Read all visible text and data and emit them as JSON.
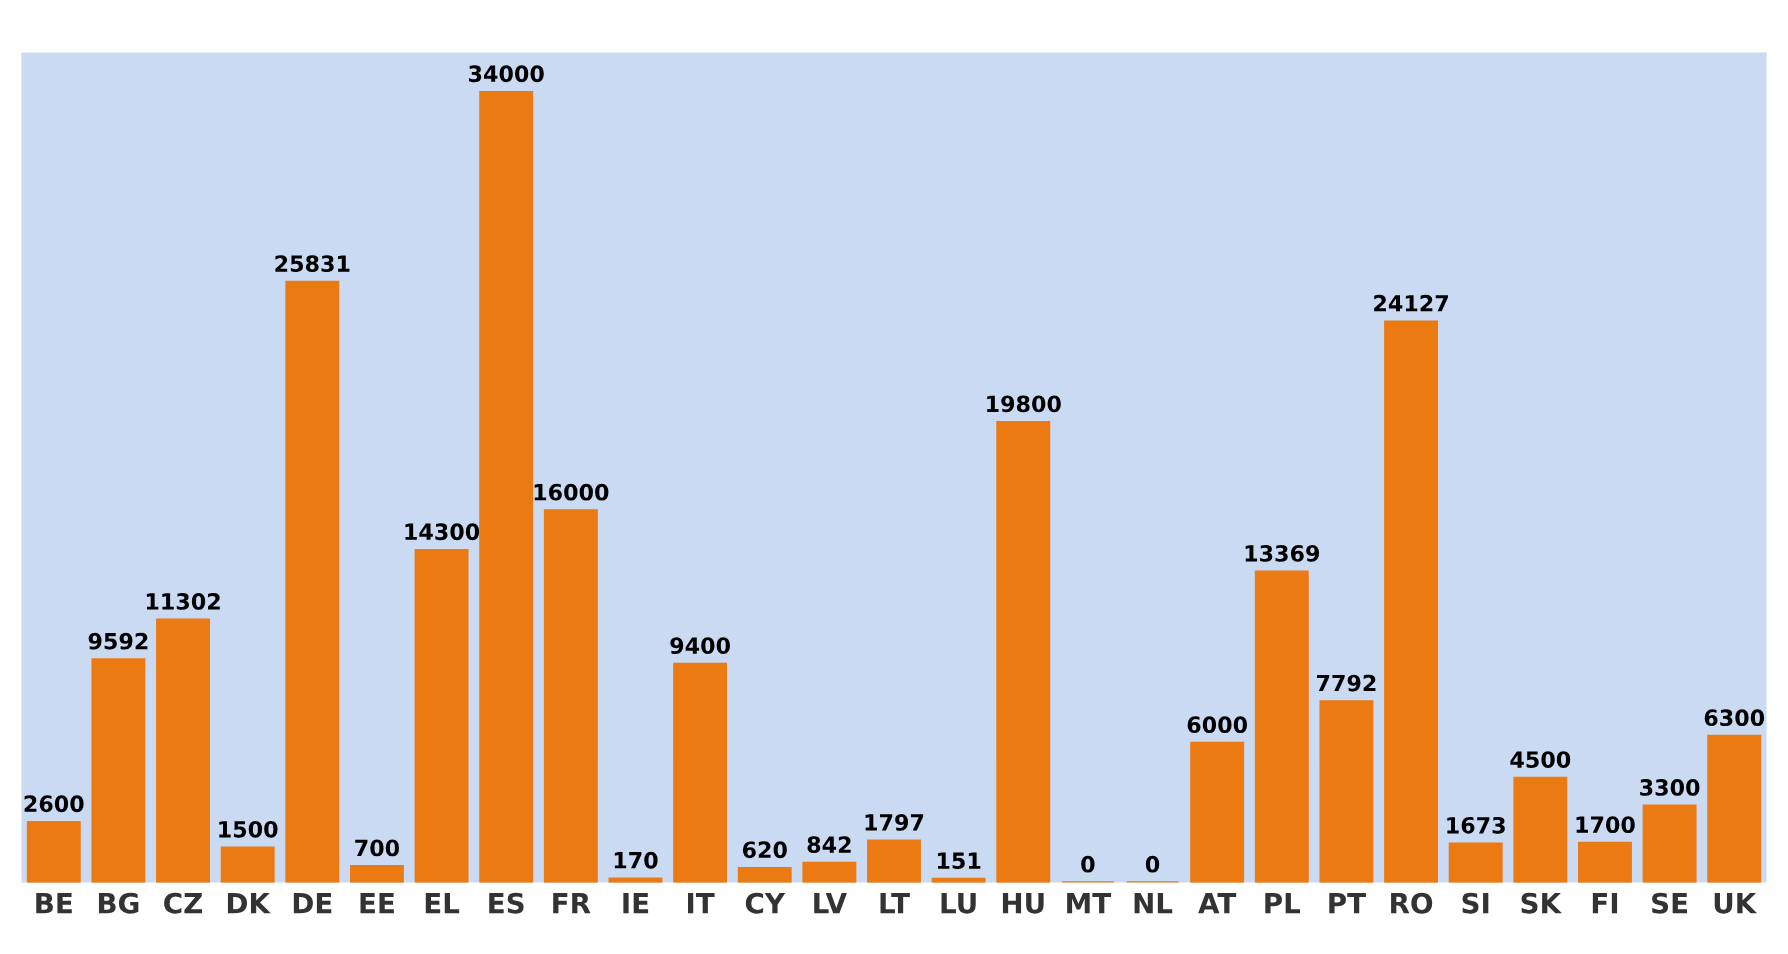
{
  "chart_data": {
    "type": "bar",
    "categories": [
      "BE",
      "BG",
      "CZ",
      "DK",
      "DE",
      "EE",
      "EL",
      "ES",
      "FR",
      "IE",
      "IT",
      "CY",
      "LV",
      "LT",
      "LU",
      "HU",
      "MT",
      "NL",
      "AT",
      "PL",
      "PT",
      "RO",
      "SI",
      "SK",
      "FI",
      "SE",
      "UK"
    ],
    "values": [
      2600,
      9592,
      11302,
      1500,
      25831,
      700,
      14300,
      34000,
      16000,
      170,
      9400,
      620,
      842,
      1797,
      151,
      19800,
      0,
      0,
      6000,
      13369,
      7792,
      24127,
      1673,
      4500,
      1700,
      3300,
      6300
    ],
    "color": "#ec7a12",
    "data_labels": true,
    "tick_labels": "x",
    "grid": false,
    "legend": false
  }
}
